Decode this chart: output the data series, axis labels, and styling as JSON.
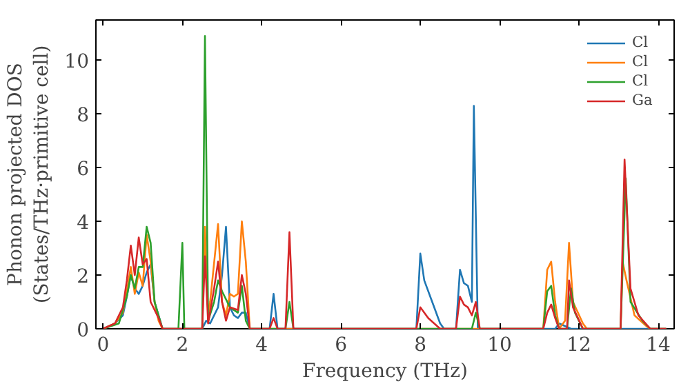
{
  "chart_data": {
    "type": "line",
    "xlabel": "Frequency (THz)",
    "ylabel": "Phonon projected DOS\n(States/THz·primitive cell)",
    "xlim": [
      -0.18,
      14.4
    ],
    "ylim": [
      0,
      11.5
    ],
    "xticks": [
      0,
      2,
      4,
      6,
      8,
      10,
      12,
      14
    ],
    "yticks": [
      0,
      2,
      4,
      6,
      8,
      10
    ],
    "grid": false,
    "legend": "top right",
    "series": [
      {
        "name": "Cl",
        "color": "#1f77b4",
        "x": [
          0,
          0.3,
          0.5,
          0.6,
          0.7,
          0.8,
          0.9,
          1.0,
          1.1,
          1.2,
          1.3,
          1.4,
          1.5,
          2.5,
          2.6,
          2.7,
          2.9,
          3.0,
          3.1,
          3.2,
          3.3,
          3.4,
          3.5,
          3.6,
          3.7,
          4.2,
          4.3,
          4.4,
          7.9,
          8.0,
          8.1,
          8.3,
          8.5,
          8.6,
          8.9,
          9.0,
          9.1,
          9.2,
          9.3,
          9.35,
          9.45,
          11.4,
          11.5,
          11.8,
          14.2
        ],
        "values": [
          0,
          0.2,
          0.5,
          1.2,
          2.0,
          1.5,
          1.3,
          1.6,
          2.1,
          2.4,
          1.0,
          0.5,
          0,
          0,
          0.3,
          0.2,
          0.8,
          2.0,
          3.8,
          0.8,
          0.5,
          0.4,
          0.6,
          0.6,
          0,
          0,
          1.3,
          0,
          0,
          2.8,
          1.8,
          1.0,
          0.2,
          0,
          0,
          2.2,
          1.7,
          1.6,
          1.0,
          8.3,
          0,
          0,
          0.2,
          0,
          0
        ]
      },
      {
        "name": "Cl",
        "color": "#ff7f0e",
        "x": [
          0,
          0.3,
          0.5,
          0.6,
          0.7,
          0.8,
          0.9,
          1.0,
          1.1,
          1.2,
          1.3,
          1.4,
          1.5,
          2.5,
          2.57,
          2.65,
          2.7,
          2.9,
          3.0,
          3.1,
          3.2,
          3.3,
          3.4,
          3.5,
          3.6,
          3.7,
          11.1,
          11.2,
          11.3,
          11.4,
          11.5,
          11.65,
          11.75,
          11.85,
          12.1,
          12.2,
          13.05,
          13.1,
          13.2,
          13.4,
          13.7,
          13.8,
          14.2
        ],
        "values": [
          0,
          0.2,
          0.6,
          1.4,
          2.3,
          1.3,
          2.1,
          1.6,
          3.5,
          2.5,
          1.0,
          0.3,
          0,
          0,
          3.8,
          0.5,
          1.0,
          3.9,
          1.0,
          0.5,
          1.3,
          1.2,
          1.3,
          4.0,
          2.5,
          0,
          0,
          2.2,
          2.5,
          1.0,
          0,
          0.3,
          3.2,
          1.0,
          0.2,
          0,
          0,
          2.5,
          1.8,
          0.5,
          0.1,
          0,
          0
        ]
      },
      {
        "name": "Cl",
        "color": "#2ca02c",
        "x": [
          0,
          0.4,
          0.6,
          0.7,
          0.8,
          0.9,
          1.0,
          1.1,
          1.2,
          1.3,
          1.5,
          1.9,
          2.0,
          2.05,
          2.5,
          2.57,
          2.65,
          2.8,
          2.9,
          3.0,
          3.2,
          3.4,
          3.5,
          3.6,
          3.7,
          4.6,
          4.7,
          4.8,
          9.3,
          9.4,
          9.5,
          11.1,
          11.2,
          11.3,
          11.4,
          11.5,
          11.7,
          11.8,
          11.9,
          12.1,
          13.05,
          13.18,
          13.3,
          13.6,
          13.8,
          14.2
        ],
        "values": [
          0,
          0.2,
          1.2,
          2.0,
          1.5,
          2.3,
          2.3,
          3.8,
          3.2,
          1.0,
          0,
          0,
          3.2,
          0,
          0,
          10.9,
          0.3,
          1.0,
          1.8,
          1.4,
          0.8,
          0.6,
          1.6,
          0.3,
          0,
          0,
          1.0,
          0,
          0,
          0.6,
          0,
          0,
          1.4,
          1.6,
          0.5,
          0,
          0,
          1.5,
          0.6,
          0,
          0,
          5.6,
          1.0,
          0.3,
          0,
          0
        ]
      },
      {
        "name": "Ga",
        "color": "#d62728",
        "x": [
          0,
          0.3,
          0.5,
          0.6,
          0.7,
          0.8,
          0.9,
          1.0,
          1.1,
          1.2,
          1.4,
          1.5,
          2.5,
          2.57,
          2.65,
          2.8,
          2.9,
          3.0,
          3.1,
          3.2,
          3.4,
          3.5,
          3.6,
          3.7,
          4.2,
          4.3,
          4.4,
          4.6,
          4.7,
          4.8,
          7.9,
          8.0,
          8.2,
          8.5,
          8.9,
          9.0,
          9.1,
          9.2,
          9.3,
          9.4,
          9.5,
          11.1,
          11.2,
          11.3,
          11.4,
          11.5,
          11.7,
          11.75,
          11.85,
          12.1,
          13.05,
          13.15,
          13.3,
          13.5,
          13.8,
          14.2
        ],
        "values": [
          0,
          0.2,
          0.8,
          1.8,
          3.1,
          2.0,
          3.4,
          2.4,
          2.6,
          1.0,
          0.4,
          0,
          0,
          2.7,
          0.2,
          1.5,
          2.5,
          1.0,
          0.3,
          0.8,
          0.7,
          2.0,
          1.3,
          0,
          0,
          0.4,
          0,
          0,
          3.6,
          0,
          0,
          0.8,
          0.4,
          0,
          0,
          1.2,
          0.9,
          0.8,
          0.5,
          1.0,
          0,
          0,
          0.6,
          0.9,
          0.4,
          0,
          0,
          1.8,
          0.8,
          0,
          0,
          6.3,
          1.5,
          0.5,
          0,
          0
        ]
      }
    ]
  }
}
